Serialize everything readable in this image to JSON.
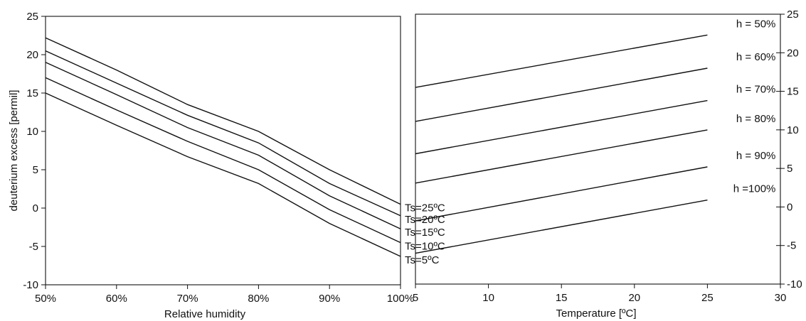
{
  "chart_data": [
    {
      "type": "line",
      "xlabel": "Relative humidity",
      "ylabel": "deuterium excess [permil]",
      "xlim": [
        50,
        100
      ],
      "ylim": [
        -10,
        25
      ],
      "x_tick_labels": [
        "50%",
        "60%",
        "70%",
        "80%",
        "90%",
        "100%"
      ],
      "y_tick_labels": [
        "-10",
        "-5",
        "0",
        "5",
        "10",
        "15",
        "20",
        "25"
      ],
      "grid": false,
      "series": [
        {
          "name": "Ts=25ºC",
          "x": [
            50,
            60,
            70,
            80,
            90,
            100
          ],
          "y": [
            22.2,
            18.0,
            13.5,
            10.0,
            5.0,
            0.5
          ]
        },
        {
          "name": "Ts=20ºC",
          "x": [
            50,
            60,
            70,
            80,
            90,
            100
          ],
          "y": [
            20.5,
            16.3,
            12.1,
            8.5,
            3.2,
            -1.0
          ]
        },
        {
          "name": "Ts=15ºC",
          "x": [
            50,
            60,
            70,
            80,
            90,
            100
          ],
          "y": [
            19.0,
            14.8,
            10.5,
            6.9,
            1.6,
            -2.7
          ]
        },
        {
          "name": "Ts=10ºC",
          "x": [
            50,
            60,
            70,
            80,
            90,
            100
          ],
          "y": [
            17.0,
            12.8,
            8.7,
            5.0,
            -0.2,
            -4.5
          ]
        },
        {
          "name": "Ts=5ºC",
          "x": [
            50,
            60,
            70,
            80,
            90,
            100
          ],
          "y": [
            15.0,
            10.8,
            6.7,
            3.2,
            -2.0,
            -6.3
          ]
        }
      ]
    },
    {
      "type": "line",
      "xlabel": "Temperature [ºC]",
      "ylabel": "",
      "xlim": [
        5,
        30
      ],
      "ylim": [
        -10,
        25
      ],
      "x_tick_labels": [
        "5",
        "10",
        "15",
        "20",
        "25",
        "30"
      ],
      "y_tick_labels": [
        "-10",
        "-5",
        "0",
        "5",
        "10",
        "15",
        "20",
        "25"
      ],
      "y_axis_side": "right",
      "grid": false,
      "series": [
        {
          "name": "h = 50%",
          "x": [
            5,
            25
          ],
          "y": [
            15.5,
            22.3
          ]
        },
        {
          "name": "h = 60%",
          "x": [
            5,
            25
          ],
          "y": [
            11.1,
            18.0
          ]
        },
        {
          "name": "h = 70%",
          "x": [
            5,
            25
          ],
          "y": [
            6.9,
            13.8
          ]
        },
        {
          "name": "h = 80%",
          "x": [
            5,
            25
          ],
          "y": [
            3.1,
            10.0
          ]
        },
        {
          "name": "h = 90%",
          "x": [
            5,
            25
          ],
          "y": [
            -1.8,
            5.2
          ]
        },
        {
          "name": "h =100%",
          "x": [
            5,
            25
          ],
          "y": [
            -6.0,
            0.9
          ]
        }
      ]
    }
  ]
}
